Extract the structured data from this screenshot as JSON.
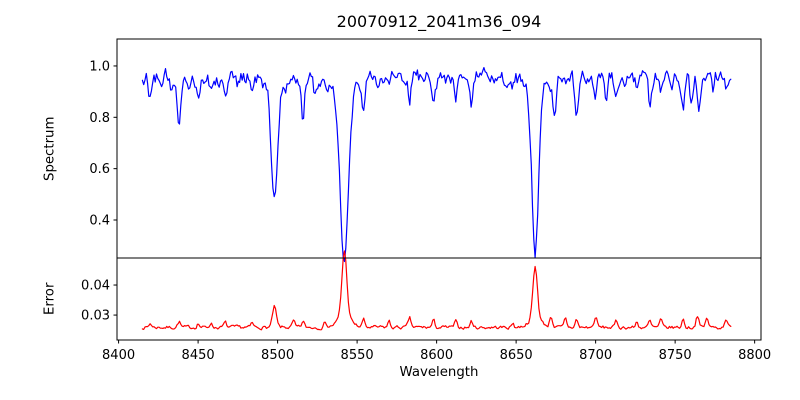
{
  "title": "20070912_2041m36_094",
  "chart_data": [
    {
      "type": "line",
      "series": "Spectrum",
      "title": "20070912_2041m36_094",
      "ylabel": "Spectrum",
      "color": "#0000ff",
      "xlim": [
        8399,
        8804
      ],
      "ylim": [
        0.252,
        1.105
      ],
      "x_range": [
        8415,
        8785
      ],
      "yticks": [
        {
          "v": 0.4,
          "label": "0.4"
        },
        {
          "v": 0.6,
          "label": "0.6"
        },
        {
          "v": 0.8,
          "label": "0.8"
        },
        {
          "v": 1.0,
          "label": "1.0"
        }
      ],
      "grid": false,
      "legend": "none",
      "mode": "absorption",
      "baseline": 0.955,
      "noise_amp": 0.026,
      "noise_persistence": 0.5,
      "points": 460,
      "seed": 12,
      "features": [
        [
          8420,
          0.885,
          1.0
        ],
        [
          8427,
          0.905,
          0.9
        ],
        [
          8433,
          0.9,
          0.8
        ],
        [
          8438,
          0.79,
          1.0
        ],
        [
          8444,
          0.92,
          0.8
        ],
        [
          8450,
          0.89,
          0.9
        ],
        [
          8458,
          0.91,
          0.8
        ],
        [
          8467,
          0.9,
          0.9
        ],
        [
          8475,
          0.915,
          0.8
        ],
        [
          8484,
          0.91,
          0.8
        ],
        [
          8490,
          0.92,
          0.8
        ],
        [
          8498,
          0.5,
          1.9
        ],
        [
          8498,
          0.93,
          6.0
        ],
        [
          8505,
          0.93,
          0.8
        ],
        [
          8516,
          0.8,
          1.0
        ],
        [
          8523,
          0.91,
          0.8
        ],
        [
          8530,
          0.93,
          0.8
        ],
        [
          8542,
          0.29,
          2.6
        ],
        [
          8542,
          0.915,
          8.0
        ],
        [
          8554,
          0.86,
          0.9
        ],
        [
          8562,
          0.93,
          0.8
        ],
        [
          8570,
          0.92,
          0.8
        ],
        [
          8583,
          0.87,
          0.9
        ],
        [
          8598,
          0.9,
          0.9
        ],
        [
          8612,
          0.86,
          0.9
        ],
        [
          8622,
          0.84,
          1.0
        ],
        [
          8634,
          0.92,
          0.8
        ],
        [
          8648,
          0.925,
          0.8
        ],
        [
          8662,
          0.32,
          2.1
        ],
        [
          8662,
          0.92,
          6.0
        ],
        [
          8674,
          0.8,
          1.0
        ],
        [
          8681,
          0.92,
          0.8
        ],
        [
          8688,
          0.795,
          1.0
        ],
        [
          8700,
          0.875,
          0.9
        ],
        [
          8707,
          0.875,
          0.8
        ],
        [
          8713,
          0.868,
          0.9
        ],
        [
          8726,
          0.887,
          0.8
        ],
        [
          8734,
          0.86,
          1.0
        ],
        [
          8741,
          0.9,
          0.8
        ],
        [
          8748,
          0.89,
          0.8
        ],
        [
          8755,
          0.828,
          0.9
        ],
        [
          8760,
          0.85,
          0.8
        ],
        [
          8765,
          0.84,
          0.9
        ],
        [
          8774,
          0.887,
          0.8
        ],
        [
          8782,
          0.9,
          0.8
        ]
      ]
    },
    {
      "type": "line",
      "series": "Error",
      "ylabel": "Error",
      "xlabel": "Wavelength",
      "color": "#ff0000",
      "xlim": [
        8399,
        8804
      ],
      "ylim": [
        0.0217,
        0.049
      ],
      "x_range": [
        8415,
        8785
      ],
      "yticks": [
        {
          "v": 0.03,
          "label": "0.03"
        },
        {
          "v": 0.04,
          "label": "0.04"
        }
      ],
      "xticks": [
        {
          "v": 8400,
          "label": "8400"
        },
        {
          "v": 8450,
          "label": "8450"
        },
        {
          "v": 8500,
          "label": "8500"
        },
        {
          "v": 8550,
          "label": "8550"
        },
        {
          "v": 8600,
          "label": "8600"
        },
        {
          "v": 8650,
          "label": "8650"
        },
        {
          "v": 8700,
          "label": "8700"
        },
        {
          "v": 8750,
          "label": "8750"
        },
        {
          "v": 8800,
          "label": "8800"
        }
      ],
      "grid": false,
      "legend": "none",
      "mode": "emission",
      "baseline": 0.0259,
      "noise_amp": 0.0005,
      "noise_persistence": 0.5,
      "points": 460,
      "seed": 7,
      "features": [
        [
          8420,
          0.0272,
          0.8
        ],
        [
          8438,
          0.0278,
          0.9
        ],
        [
          8450,
          0.0272,
          0.8
        ],
        [
          8458,
          0.0274,
          0.8
        ],
        [
          8467,
          0.0275,
          0.8
        ],
        [
          8484,
          0.0274,
          0.7
        ],
        [
          8498,
          0.0327,
          1.2
        ],
        [
          8510,
          0.028,
          0.8
        ],
        [
          8516,
          0.0278,
          0.8
        ],
        [
          8530,
          0.0278,
          0.8
        ],
        [
          8542,
          0.0473,
          1.5
        ],
        [
          8542,
          0.03,
          4.0
        ],
        [
          8554,
          0.0285,
          0.8
        ],
        [
          8570,
          0.028,
          0.7
        ],
        [
          8583,
          0.029,
          0.9
        ],
        [
          8598,
          0.0282,
          0.8
        ],
        [
          8612,
          0.0278,
          0.8
        ],
        [
          8622,
          0.028,
          0.8
        ],
        [
          8648,
          0.0274,
          0.7
        ],
        [
          8662,
          0.0428,
          1.4
        ],
        [
          8662,
          0.029,
          4.0
        ],
        [
          8672,
          0.0295,
          0.9
        ],
        [
          8681,
          0.0288,
          0.8
        ],
        [
          8688,
          0.0285,
          0.8
        ],
        [
          8700,
          0.0293,
          0.9
        ],
        [
          8713,
          0.028,
          0.8
        ],
        [
          8726,
          0.0278,
          0.7
        ],
        [
          8734,
          0.028,
          0.8
        ],
        [
          8741,
          0.0284,
          0.8
        ],
        [
          8755,
          0.0286,
          0.8
        ],
        [
          8764,
          0.03,
          0.9
        ],
        [
          8770,
          0.0292,
          0.8
        ],
        [
          8782,
          0.029,
          0.9
        ]
      ]
    }
  ]
}
